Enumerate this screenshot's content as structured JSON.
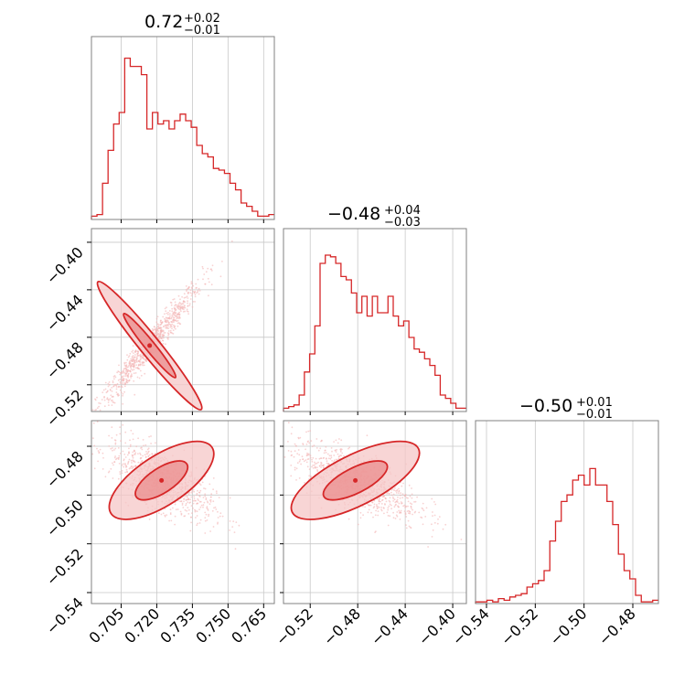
{
  "colors": {
    "accent": "#d62728",
    "fill_inner": "#eb8c8c",
    "fill_outer": "#f6c7c7",
    "scatter": "#f4b4b4",
    "grid": "#c8c8c8"
  },
  "chart_data": {
    "type": "corner",
    "parameters": 3,
    "titles": [
      {
        "value": "0.72",
        "plus": "+0.02",
        "minus": "−0.01"
      },
      {
        "value": "−0.48",
        "plus": "+0.04",
        "minus": "−0.03"
      },
      {
        "value": "−0.50",
        "plus": "+0.01",
        "minus": "−0.01"
      }
    ],
    "axes": [
      {
        "range": [
          0.6925,
          0.7695
        ],
        "ticks": [
          0.705,
          0.72,
          0.735,
          0.75,
          0.765
        ],
        "tick_labels": [
          "0.705",
          "0.720",
          "0.735",
          "0.750",
          "0.765"
        ]
      },
      {
        "range": [
          -0.5425,
          -0.3885
        ],
        "ticks": [
          -0.52,
          -0.48,
          -0.44,
          -0.4
        ],
        "tick_labels": [
          "−0.52",
          "−0.48",
          "−0.44",
          "−0.40"
        ]
      },
      {
        "range": [
          -0.5445,
          -0.4695
        ],
        "ticks": [
          -0.54,
          -0.52,
          -0.5,
          -0.48
        ],
        "tick_labels": [
          "−0.54",
          "−0.52",
          "−0.50",
          "−0.48"
        ]
      }
    ],
    "histograms": [
      {
        "param": 0,
        "values": [
          0.02,
          0.03,
          0.22,
          0.42,
          0.58,
          0.65,
          0.98,
          0.93,
          0.93,
          0.88,
          0.55,
          0.65,
          0.58,
          0.6,
          0.55,
          0.6,
          0.64,
          0.6,
          0.56,
          0.45,
          0.4,
          0.38,
          0.31,
          0.3,
          0.28,
          0.22,
          0.18,
          0.1,
          0.08,
          0.05,
          0.02,
          0.02,
          0.03
        ]
      },
      {
        "param": 1,
        "values": [
          0.02,
          0.03,
          0.04,
          0.1,
          0.24,
          0.35,
          0.52,
          0.9,
          0.95,
          0.94,
          0.9,
          0.82,
          0.8,
          0.72,
          0.6,
          0.7,
          0.58,
          0.7,
          0.6,
          0.6,
          0.7,
          0.58,
          0.52,
          0.55,
          0.45,
          0.38,
          0.36,
          0.32,
          0.28,
          0.22,
          0.1,
          0.08,
          0.05,
          0.02,
          0.02
        ]
      },
      {
        "param": 2,
        "values": [
          0.01,
          0.01,
          0.02,
          0.01,
          0.03,
          0.02,
          0.04,
          0.05,
          0.06,
          0.1,
          0.12,
          0.14,
          0.2,
          0.38,
          0.5,
          0.62,
          0.66,
          0.75,
          0.78,
          0.72,
          0.82,
          0.72,
          0.72,
          0.62,
          0.48,
          0.3,
          0.2,
          0.15,
          0.05,
          0.01,
          0.01,
          0.02
        ]
      }
    ],
    "scatter_2d": [
      {
        "x_param": 0,
        "y_param": 1,
        "center": [
          0.717,
          -0.487
        ],
        "sd": [
          0.011,
          0.027
        ],
        "correlation": 0.97,
        "n_samples": 900
      },
      {
        "x_param": 0,
        "y_param": 2,
        "center": [
          0.722,
          -0.494
        ],
        "sd": [
          0.011,
          0.008
        ],
        "correlation": -0.68,
        "n_samples": 900
      },
      {
        "x_param": 1,
        "y_param": 2,
        "center": [
          -0.482,
          -0.494
        ],
        "sd": [
          0.027,
          0.008
        ],
        "correlation": -0.7,
        "n_samples": 900
      }
    ],
    "contour_levels": [
      "1-sigma",
      "2-sigma"
    ],
    "grid": true
  }
}
